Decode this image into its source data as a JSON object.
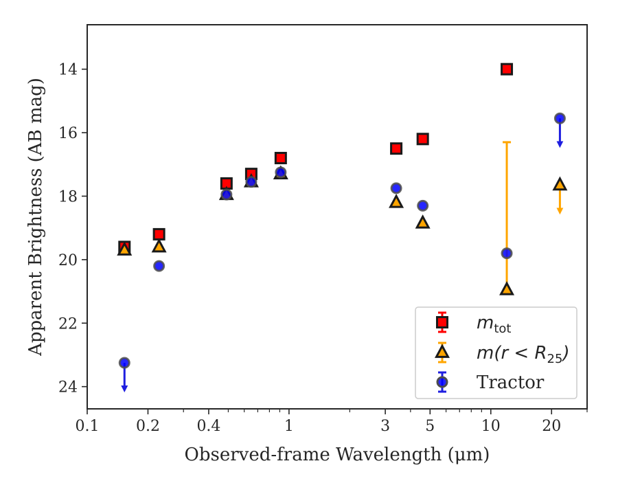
{
  "chart_data": {
    "type": "scatter",
    "title": "",
    "xlabel": "Observed-frame Wavelength (μm)",
    "ylabel": "Apparent Brightness (AB mag)",
    "xscale": "log",
    "xlim": [
      0.1,
      30
    ],
    "ylim": [
      24.7,
      12.6
    ],
    "y_inverted": true,
    "x_ticks": [
      {
        "value": 0.1,
        "label": "0.1"
      },
      {
        "value": 0.2,
        "label": "0.2"
      },
      {
        "value": 0.4,
        "label": "0.4"
      },
      {
        "value": 1,
        "label": "1"
      },
      {
        "value": 3,
        "label": "3"
      },
      {
        "value": 5,
        "label": "5"
      },
      {
        "value": 10,
        "label": "10"
      },
      {
        "value": 20,
        "label": "20"
      }
    ],
    "x_minor_ticks": [
      0.3,
      0.5,
      0.6,
      0.7,
      0.8,
      0.9,
      2,
      4,
      6,
      7,
      8,
      9,
      30
    ],
    "y_ticks": [
      {
        "value": 14,
        "label": "14"
      },
      {
        "value": 16,
        "label": "16"
      },
      {
        "value": 18,
        "label": "18"
      },
      {
        "value": 20,
        "label": "20"
      },
      {
        "value": 22,
        "label": "22"
      },
      {
        "value": 24,
        "label": "24"
      }
    ],
    "grid": false,
    "legend_position": "bottom-right",
    "series": [
      {
        "name": "m_tot",
        "marker": "square",
        "color": "#ff0000",
        "edge": "#1a1a1a",
        "points": [
          {
            "x": 0.153,
            "y": 19.6
          },
          {
            "x": 0.227,
            "y": 19.2
          },
          {
            "x": 0.49,
            "y": 17.6
          },
          {
            "x": 0.65,
            "y": 17.3
          },
          {
            "x": 0.91,
            "y": 16.8
          },
          {
            "x": 3.4,
            "y": 16.5
          },
          {
            "x": 4.6,
            "y": 16.2
          },
          {
            "x": 12.0,
            "y": 14.0
          }
        ]
      },
      {
        "name": "m(r<R25)",
        "marker": "triangle",
        "color": "#ffa500",
        "edge": "#1a1a1a",
        "points": [
          {
            "x": 0.153,
            "y": 19.7
          },
          {
            "x": 0.227,
            "y": 19.6
          },
          {
            "x": 0.49,
            "y": 17.95
          },
          {
            "x": 0.65,
            "y": 17.55
          },
          {
            "x": 0.91,
            "y": 17.3
          },
          {
            "x": 3.4,
            "y": 18.2
          },
          {
            "x": 4.6,
            "y": 18.85
          },
          {
            "x": 12.0,
            "y": 20.95,
            "yerr_low": 16.3,
            "yerr_high": 20.95
          },
          {
            "x": 22.0,
            "y": 17.65,
            "upper_limit": true
          }
        ]
      },
      {
        "name": "Tractor",
        "marker": "circle",
        "color": "#0000ff",
        "edge": "#4d4d4d",
        "points": [
          {
            "x": 0.153,
            "y": 23.25,
            "upper_limit": true
          },
          {
            "x": 0.227,
            "y": 20.2
          },
          {
            "x": 0.49,
            "y": 17.95
          },
          {
            "x": 0.65,
            "y": 17.55
          },
          {
            "x": 0.91,
            "y": 17.25
          },
          {
            "x": 3.4,
            "y": 17.75
          },
          {
            "x": 4.6,
            "y": 18.3
          },
          {
            "x": 12.0,
            "y": 19.8
          },
          {
            "x": 22.0,
            "y": 15.55,
            "upper_limit": true
          }
        ]
      }
    ],
    "legend": [
      {
        "series": "m_tot",
        "base": "m",
        "sub": "tot"
      },
      {
        "series": "m(r<R25)",
        "base": "m(r < R",
        "sub": "25",
        "suffix": ")"
      },
      {
        "series": "Tractor",
        "text": "Tractor"
      }
    ]
  }
}
